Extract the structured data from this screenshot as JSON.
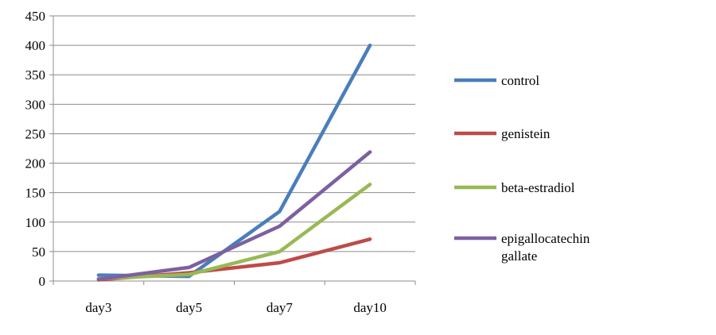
{
  "chart_data": {
    "type": "line",
    "title": "",
    "xlabel": "",
    "ylabel": "",
    "categories": [
      "day3",
      "day5",
      "day7",
      "day10"
    ],
    "ylim": [
      0,
      450
    ],
    "yticks": [
      0,
      50,
      100,
      150,
      200,
      250,
      300,
      350,
      400,
      450
    ],
    "grid": "horizontal",
    "legend_position": "right",
    "series": [
      {
        "name": "control",
        "color": "#4a7ebb",
        "values": [
          10,
          8,
          118,
          400
        ]
      },
      {
        "name": "genistein",
        "color": "#be4b48",
        "values": [
          2,
          14,
          31,
          71
        ]
      },
      {
        "name": "beta-estradiol",
        "color": "#98b954",
        "values": [
          4,
          11,
          50,
          164
        ]
      },
      {
        "name": "epigallocatechin gallate",
        "color": "#7d60a0",
        "values": [
          3,
          23,
          93,
          219
        ]
      }
    ]
  }
}
